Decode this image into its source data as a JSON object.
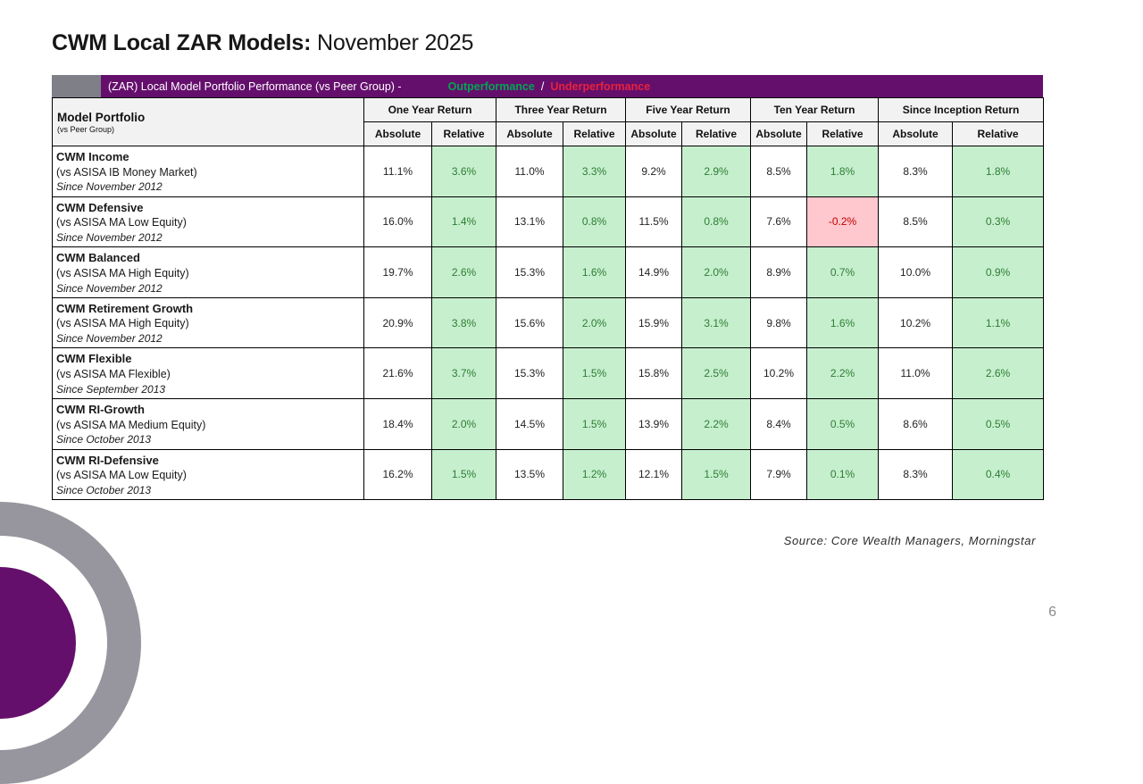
{
  "title": {
    "bold": "CWM Local ZAR Models:",
    "regular": "November 2025"
  },
  "banner": {
    "label": "(ZAR) Local Model Portfolio Performance (vs Peer Group) -",
    "outperformance": "Outperformance",
    "separator": "/",
    "underperformance": "Underperformance"
  },
  "table": {
    "corner": {
      "title": "Model Portfolio",
      "subtitle": "(vs Peer Group)"
    },
    "groups": [
      "One Year Return",
      "Three Year Return",
      "Five Year Return",
      "Ten Year Return",
      "Since Inception Return"
    ],
    "sub_headers": [
      "Absolute",
      "Relative"
    ],
    "rows": [
      {
        "name": "CWM Income",
        "benchmark": "(vs ASISA IB Money Market)",
        "since": "Since November 2012",
        "cells": [
          {
            "text": "11.1%",
            "state": "plain"
          },
          {
            "text": "3.6%",
            "state": "good"
          },
          {
            "text": "11.0%",
            "state": "plain"
          },
          {
            "text": "3.3%",
            "state": "good"
          },
          {
            "text": "9.2%",
            "state": "plain"
          },
          {
            "text": "2.9%",
            "state": "good"
          },
          {
            "text": "8.5%",
            "state": "plain"
          },
          {
            "text": "1.8%",
            "state": "good"
          },
          {
            "text": "8.3%",
            "state": "plain"
          },
          {
            "text": "1.8%",
            "state": "good"
          }
        ]
      },
      {
        "name": "CWM Defensive",
        "benchmark": "(vs ASISA MA Low Equity)",
        "since": "Since November 2012",
        "cells": [
          {
            "text": "16.0%",
            "state": "plain"
          },
          {
            "text": "1.4%",
            "state": "good"
          },
          {
            "text": "13.1%",
            "state": "plain"
          },
          {
            "text": "0.8%",
            "state": "good"
          },
          {
            "text": "11.5%",
            "state": "plain"
          },
          {
            "text": "0.8%",
            "state": "good"
          },
          {
            "text": "7.6%",
            "state": "plain"
          },
          {
            "text": "-0.2%",
            "state": "bad"
          },
          {
            "text": "8.5%",
            "state": "plain"
          },
          {
            "text": "0.3%",
            "state": "good"
          }
        ]
      },
      {
        "name": "CWM Balanced",
        "benchmark": "(vs ASISA MA High Equity)",
        "since": "Since November 2012",
        "cells": [
          {
            "text": "19.7%",
            "state": "plain"
          },
          {
            "text": "2.6%",
            "state": "good"
          },
          {
            "text": "15.3%",
            "state": "plain"
          },
          {
            "text": "1.6%",
            "state": "good"
          },
          {
            "text": "14.9%",
            "state": "plain"
          },
          {
            "text": "2.0%",
            "state": "good"
          },
          {
            "text": "8.9%",
            "state": "plain"
          },
          {
            "text": "0.7%",
            "state": "good"
          },
          {
            "text": "10.0%",
            "state": "plain"
          },
          {
            "text": "0.9%",
            "state": "good"
          }
        ]
      },
      {
        "name": "CWM Retirement Growth",
        "benchmark": "(vs ASISA MA High Equity)",
        "since": "Since November 2012",
        "cells": [
          {
            "text": "20.9%",
            "state": "plain"
          },
          {
            "text": "3.8%",
            "state": "good"
          },
          {
            "text": "15.6%",
            "state": "plain"
          },
          {
            "text": "2.0%",
            "state": "good"
          },
          {
            "text": "15.9%",
            "state": "plain"
          },
          {
            "text": "3.1%",
            "state": "good"
          },
          {
            "text": "9.8%",
            "state": "plain"
          },
          {
            "text": "1.6%",
            "state": "good"
          },
          {
            "text": "10.2%",
            "state": "plain"
          },
          {
            "text": "1.1%",
            "state": "good"
          }
        ]
      },
      {
        "name": "CWM Flexible",
        "benchmark": "(vs ASISA MA Flexible)",
        "since": "Since September 2013",
        "cells": [
          {
            "text": "21.6%",
            "state": "plain"
          },
          {
            "text": "3.7%",
            "state": "good"
          },
          {
            "text": "15.3%",
            "state": "plain"
          },
          {
            "text": "1.5%",
            "state": "good"
          },
          {
            "text": "15.8%",
            "state": "plain"
          },
          {
            "text": "2.5%",
            "state": "good"
          },
          {
            "text": "10.2%",
            "state": "plain"
          },
          {
            "text": "2.2%",
            "state": "good"
          },
          {
            "text": "11.0%",
            "state": "plain"
          },
          {
            "text": "2.6%",
            "state": "good"
          }
        ]
      },
      {
        "name": "CWM RI-Growth",
        "benchmark": "(vs ASISA MA Medium Equity)",
        "since": "Since October 2013",
        "cells": [
          {
            "text": "18.4%",
            "state": "plain"
          },
          {
            "text": "2.0%",
            "state": "good"
          },
          {
            "text": "14.5%",
            "state": "plain"
          },
          {
            "text": "1.5%",
            "state": "good"
          },
          {
            "text": "13.9%",
            "state": "plain"
          },
          {
            "text": "2.2%",
            "state": "good"
          },
          {
            "text": "8.4%",
            "state": "plain"
          },
          {
            "text": "0.5%",
            "state": "good"
          },
          {
            "text": "8.6%",
            "state": "plain"
          },
          {
            "text": "0.5%",
            "state": "good"
          }
        ]
      },
      {
        "name": "CWM RI-Defensive",
        "benchmark": "(vs ASISA MA Low Equity)",
        "since": "Since October 2013",
        "cells": [
          {
            "text": "16.2%",
            "state": "plain"
          },
          {
            "text": "1.5%",
            "state": "good"
          },
          {
            "text": "13.5%",
            "state": "plain"
          },
          {
            "text": "1.2%",
            "state": "good"
          },
          {
            "text": "12.1%",
            "state": "plain"
          },
          {
            "text": "1.5%",
            "state": "good"
          },
          {
            "text": "7.9%",
            "state": "plain"
          },
          {
            "text": "0.1%",
            "state": "good"
          },
          {
            "text": "8.3%",
            "state": "plain"
          },
          {
            "text": "0.4%",
            "state": "good"
          }
        ]
      }
    ]
  },
  "footer": {
    "source": "Source: Core Wealth Managers, Morningstar",
    "page_number": "6"
  },
  "colors": {
    "purple": "#650f6d",
    "banner_gray": "#7f7f88",
    "green_text": "#00a651",
    "red_text": "#e8213d",
    "good_bg": "#c6efce",
    "good_text": "#2e7d32",
    "bad_bg": "#ffc7ce",
    "bad_text": "#c00000",
    "header_bg": "#f2f2f2",
    "ring_gray": "#97969e"
  }
}
